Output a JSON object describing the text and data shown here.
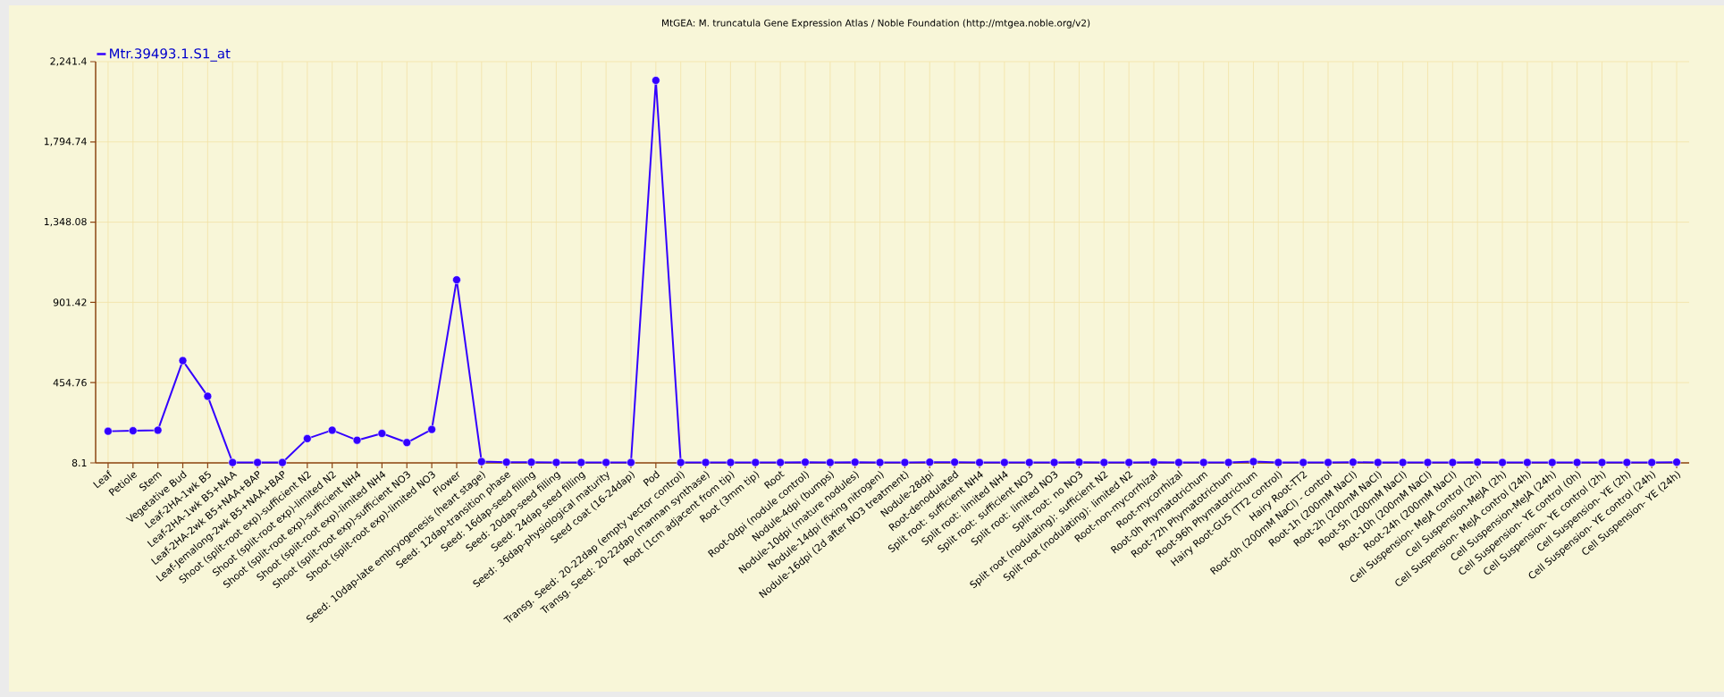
{
  "chart_data": {
    "type": "line",
    "title": "MtGEA: M. truncatula Gene Expression Atlas / Noble Foundation (http://mtgea.noble.org/v2)",
    "categories": [
      "Leaf",
      "Petiole",
      "Stem",
      "Vegetative Bud",
      "Leaf-2HA-1wk B5",
      "Leaf-2HA-1wk B5+NAA",
      "Leaf-2HA-2wk B5+NAA+BAP",
      "Leaf-Jemalong-2wk B5+NAA+BAP",
      "Shoot (split-root exp)-sufficient N2",
      "Shoot (split-root exp)-limited N2",
      "Shoot (split-root exp)-sufficient NH4",
      "Shoot (split-root exp)-limited NH4",
      "Shoot (split-root exp)-sufficient NO3",
      "Shoot (split-root exp)-limited NO3",
      "Flower",
      "Seed: 10dap-late embryogenesis (heart stage)",
      "Seed: 12dap-transition phase",
      "Seed: 16dap-seed filling",
      "Seed: 20dap-seed filling",
      "Seed: 24dap seed filling",
      "Seed: 36dap-physiological maturity",
      "Seed coat (16-24dap)",
      "Pod",
      "Transg. Seed: 20-22dap (empty vector control)",
      "Transg. Seed: 20-22dap (mannan synthase)",
      "Root (1cm adjacent from tip)",
      "Root (3mm tip)",
      "Root",
      "Root-0dpi (nodule control)",
      "Nodule-4dpi (bumps)",
      "Nodule-10dpi (mature nodules)",
      "Nodule-14dpi (fixing nitrogen)",
      "Nodule-16dpi (2d after NO3 treatment)",
      "Nodule-28dpi",
      "Root-denodulated",
      "Split root: sufficient NH4",
      "Split root: limited NH4",
      "Split root: sufficient NO3",
      "Split root: limited NO3",
      "Split root: no NO3",
      "Split root (nodulating): sufficient N2",
      "Split root (nodulating): limited N2",
      "Root-non-mycorrhizal",
      "Root-mycorrhizal",
      "Root-0h Phymatotrichum",
      "Root-72h Phymatotrichum",
      "Root-96h Phymatotrichum",
      "Hairy Root-GUS (TT2 control)",
      "Hairy Root-TT2",
      "Root-0h (200mM NaCl) - control",
      "Root-1h (200mM NaCl)",
      "Root-2h (200mM NaCl)",
      "Root-5h (200mM NaCl)",
      "Root-10h (200mM NaCl)",
      "Root-24h (200mM NaCl)",
      "Cell Suspension- MeJA control (2h)",
      "Cell Suspension-MeJA (2h)",
      "Cell Suspension- MeJA control (24h)",
      "Cell Suspension-MeJA (24h)",
      "Cell Suspension- YE control (0h)",
      "Cell Suspension- YE control (2h)",
      "Cell Suspension- YE (2h)",
      "Cell Suspension- YE control (24h)",
      "Cell Suspension- YE (24h)"
    ],
    "series": [
      {
        "name": "Mtr.39493.1.S1_at",
        "color": "#3300ff",
        "values": [
          184,
          187,
          190,
          577,
          379,
          10,
          10,
          10,
          143,
          190,
          134,
          172,
          121,
          194,
          1027,
          15,
          12,
          12,
          10,
          10,
          10,
          10,
          2137,
          10,
          10,
          10,
          10,
          10,
          12,
          10,
          12,
          10,
          10,
          12,
          12,
          10,
          10,
          10,
          10,
          12,
          10,
          10,
          12,
          10,
          10,
          10,
          15,
          10,
          10,
          10,
          12,
          10,
          10,
          10,
          10,
          12,
          10,
          10,
          10,
          10,
          10,
          10,
          10,
          12
        ]
      }
    ],
    "ylim": [
      8.1,
      2241.4
    ],
    "yticks": [
      {
        "value": 8.1,
        "label": "8.1"
      },
      {
        "value": 454.76,
        "label": "454.76"
      },
      {
        "value": 901.42,
        "label": "901.42"
      },
      {
        "value": 1348.08,
        "label": "1,348.08"
      },
      {
        "value": 1794.74,
        "label": "1,794.74"
      },
      {
        "value": 2241.4,
        "label": "2,241.4"
      }
    ],
    "grid": true,
    "legend": "top left",
    "marker": "circle",
    "line_style": "solid"
  }
}
